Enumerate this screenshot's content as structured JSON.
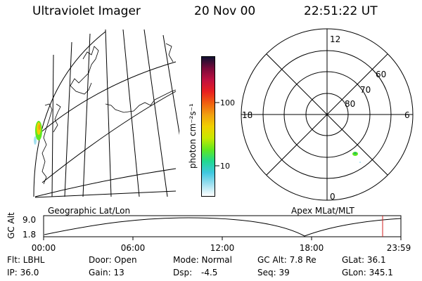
{
  "header": {
    "instrument": "Ultraviolet Imager",
    "date": "20 Nov 00",
    "time": "22:51:22 UT"
  },
  "colorbar": {
    "unit_label": "photon cm⁻²s⁻¹",
    "ticks": [
      "100",
      "10"
    ],
    "colors": [
      "#101030",
      "#7a0a3a",
      "#c01040",
      "#e82020",
      "#f06010",
      "#f0a010",
      "#f0d000",
      "#c8e800",
      "#60e820",
      "#20d890",
      "#40c8e0",
      "#a0e0f0",
      "#ffffff"
    ]
  },
  "polar": {
    "mlt_labels": [
      "12",
      "18",
      "6",
      "0"
    ],
    "lat_labels": [
      "60",
      "70",
      "80"
    ]
  },
  "projections": {
    "left_label": "Geographic Lat/Lon",
    "right_label": "Apex MLat/MLT"
  },
  "orbit_plot": {
    "ylabel": "GC Alt",
    "ytick_top": "9.0",
    "ytick_bottom": "1.8",
    "xticks": [
      "00:00",
      "06:00",
      "12:00",
      "18:00",
      "23:59"
    ],
    "current_marker_color": "#d02020"
  },
  "footer": {
    "flt": "Flt: LBHL",
    "ip": "IP: 36.0",
    "door": "Door: Open",
    "gain": "Gain: 13",
    "mode": "Mode: Normal",
    "dsp_label": "Dsp:",
    "dsp_value": "-4.5",
    "gc_alt": "GC Alt: 7.8 Re",
    "seq": "Seq: 39",
    "glat": "GLat:  36.1",
    "glon": "GLon: 345.1"
  }
}
